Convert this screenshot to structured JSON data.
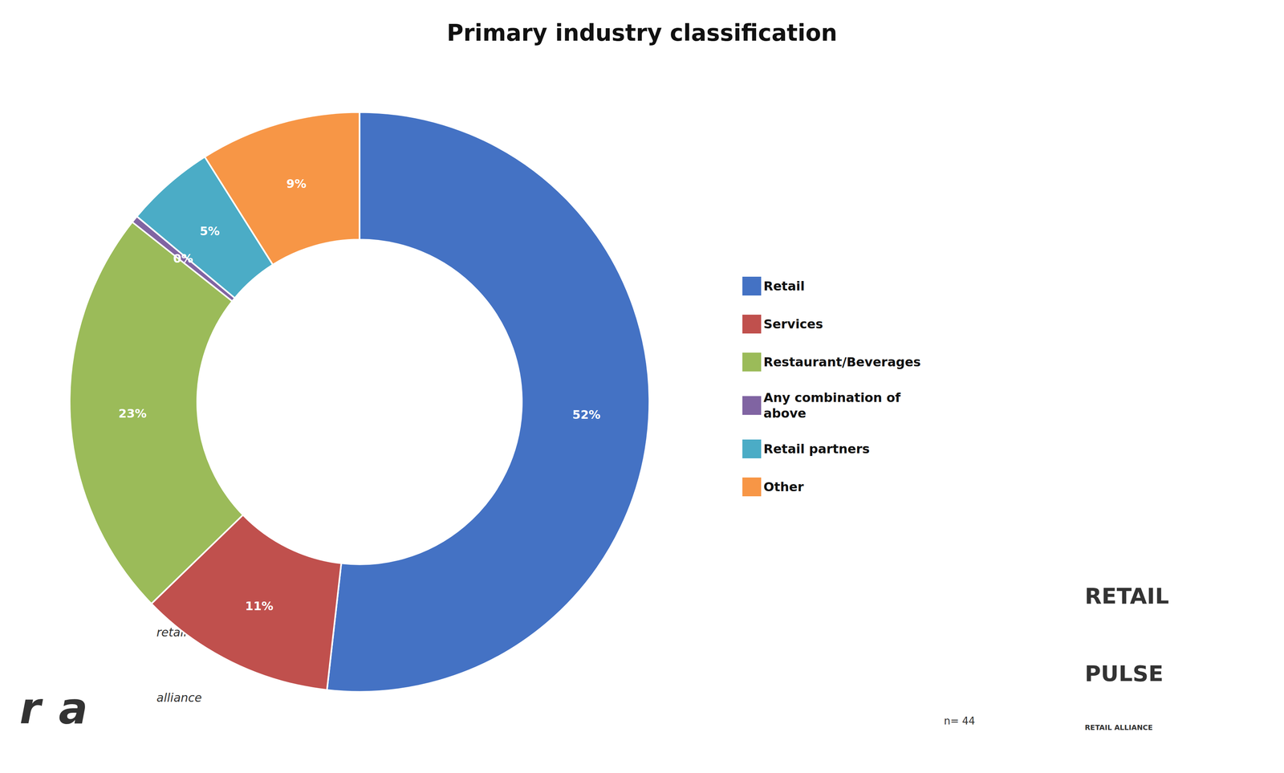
{
  "chart_data": {
    "type": "pie",
    "title": "Primary industry classification",
    "categories": [
      "Retail",
      "Services",
      "Restaurant/Beverages",
      "Any combination of\nabove",
      "Retail partners",
      "Other"
    ],
    "values": [
      52,
      11,
      23,
      0.4,
      5,
      9
    ],
    "value_labels": [
      "52%",
      "11%",
      "23%",
      "0%",
      "5%",
      "9%"
    ],
    "colors": [
      "#4472C4",
      "#C0504D",
      "#9BBB59",
      "#8064A2",
      "#4BACC6",
      "#F79646"
    ],
    "data_labels": true,
    "legend": "right",
    "annotations": [
      "n= 44",
      "r",
      "a",
      "retail",
      "alliance",
      "RETAIL",
      "PULSE",
      "RETAIL ALLIANCE"
    ]
  }
}
